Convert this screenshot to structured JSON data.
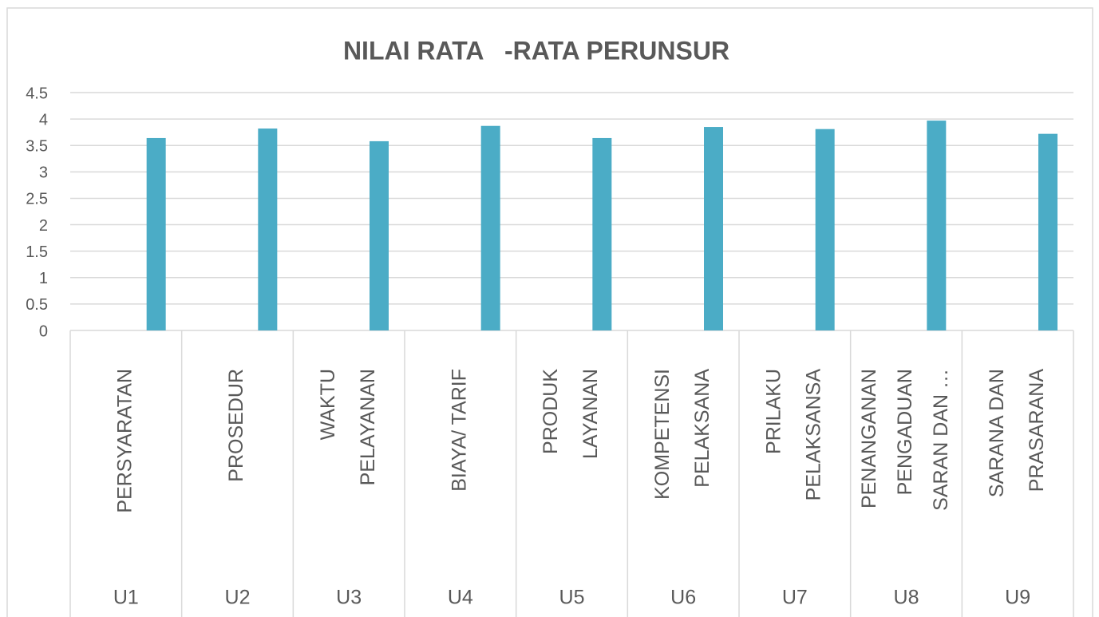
{
  "chart_data": {
    "type": "bar",
    "title": "NILAI RATA   -RATA PERUNSUR",
    "categories": [
      [
        "PERSYARATAN"
      ],
      [
        "PROSEDUR"
      ],
      [
        "WAKTU",
        "PELAYANAN"
      ],
      [
        "BIAYA/ TARIF"
      ],
      [
        "PRODUK",
        "LAYANAN"
      ],
      [
        "KOMPETENSI",
        "PELAKSANA"
      ],
      [
        "PRILAKU",
        "PELAKSANSA"
      ],
      [
        "PENANGANAN",
        "PENGADUAN",
        "SARAN DAN …"
      ],
      [
        "SARANA DAN",
        "PRASARANA"
      ]
    ],
    "groups": [
      "U1",
      "U2",
      "U3",
      "U4",
      "U5",
      "U6",
      "U7",
      "U8",
      "U9"
    ],
    "values": [
      3.64,
      3.82,
      3.58,
      3.87,
      3.64,
      3.85,
      3.81,
      3.97,
      3.72
    ],
    "color": "#4bacc6",
    "ylim": [
      0,
      4.5
    ],
    "yticks": [
      0,
      0.5,
      1,
      1.5,
      2,
      2.5,
      3,
      3.5,
      4,
      4.5
    ],
    "grid": true
  }
}
